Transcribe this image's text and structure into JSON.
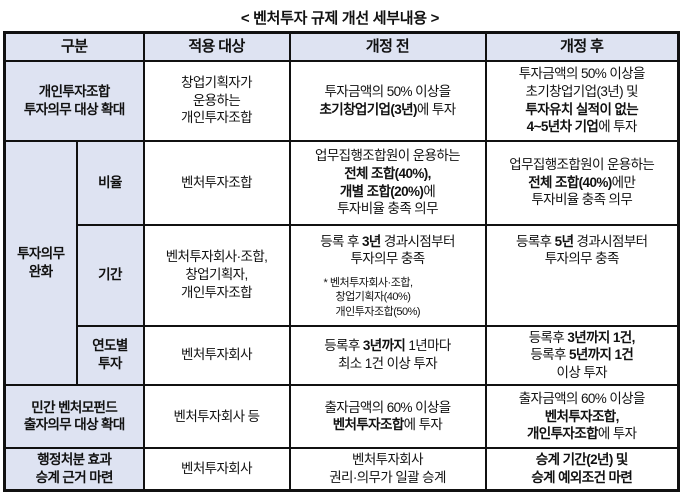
{
  "title": "< 벤처투자 규제 개선 세부내용 >",
  "colors": {
    "header_bg": "#dee3f2",
    "category_bg": "#dee3f2",
    "border": "#111111",
    "text": "#111111"
  },
  "header": {
    "category": "구분",
    "target": "적용 대상",
    "before": "개정 전",
    "after": "개정 후"
  },
  "rows": {
    "personal": {
      "category": [
        [
          {
            "t": "개인투자조합",
            "b": true
          }
        ],
        [
          {
            "t": "투자의무 대상 확대",
            "b": true
          }
        ]
      ],
      "target": [
        [
          {
            "t": "창업기획자가"
          }
        ],
        [
          {
            "t": "운용하는"
          }
        ],
        [
          {
            "t": "개인투자조합"
          }
        ]
      ],
      "before": [
        [
          {
            "t": "투자금액의 50% 이상을"
          }
        ],
        [
          {
            "t": "초기창업기업(3년)",
            "b": true
          },
          {
            "t": "에 투자"
          }
        ]
      ],
      "after": [
        [
          {
            "t": "투자금액의 50% 이상을"
          }
        ],
        [
          {
            "t": "초기창업기업(3년) 및"
          }
        ],
        [
          {
            "t": "투자유치 실적이 없는",
            "b": true
          }
        ],
        [
          {
            "t": "4~5년차 기업",
            "b": true
          },
          {
            "t": "에 투자"
          }
        ]
      ]
    },
    "ease": {
      "category": [
        [
          {
            "t": "투자의무",
            "b": true
          }
        ],
        [
          {
            "t": "완화",
            "b": true
          }
        ]
      ],
      "ratio": {
        "label": [
          [
            {
              "t": "비율",
              "b": true
            }
          ]
        ],
        "target": [
          [
            {
              "t": "벤처투자조합"
            }
          ]
        ],
        "before": [
          [
            {
              "t": "업무집행조합원이 운용하는"
            }
          ],
          [
            {
              "t": "전체 조합(40%),",
              "b": true
            }
          ],
          [
            {
              "t": "개별 조합(20%)",
              "b": true
            },
            {
              "t": "에"
            }
          ],
          [
            {
              "t": "투자비율 충족 의무"
            }
          ]
        ],
        "after": [
          [
            {
              "t": "업무집행조합원이 운용하는"
            }
          ],
          [
            {
              "t": "전체 조합(40%)",
              "b": true
            },
            {
              "t": "에만"
            }
          ],
          [
            {
              "t": "투자비율 충족 의무"
            }
          ]
        ]
      },
      "period": {
        "label": [
          [
            {
              "t": "기간",
              "b": true
            }
          ]
        ],
        "target": [
          [
            {
              "t": "벤처투자회사·조합,"
            }
          ],
          [
            {
              "t": "창업기획자,"
            }
          ],
          [
            {
              "t": "개인투자조합"
            }
          ]
        ],
        "before": [
          [
            {
              "t": "등록 후 "
            },
            {
              "t": "3년",
              "b": true
            },
            {
              "t": " 경과시점부터"
            }
          ],
          [
            {
              "t": "투자의무 충족"
            }
          ]
        ],
        "before_note": [
          [
            {
              "t": "* 벤처투자회사·조합,"
            }
          ],
          [
            {
              "t": "창업기획자(40%)"
            }
          ],
          [
            {
              "t": "개인투자조합(50%)"
            }
          ]
        ],
        "after": [
          [
            {
              "t": "등록후 "
            },
            {
              "t": "5년",
              "b": true
            },
            {
              "t": " 경과시점부터"
            }
          ],
          [
            {
              "t": "투자의무 충족"
            }
          ]
        ]
      },
      "yearly": {
        "label": [
          [
            {
              "t": "연도별",
              "b": true
            }
          ],
          [
            {
              "t": "투자",
              "b": true
            }
          ]
        ],
        "target": [
          [
            {
              "t": "벤처투자회사"
            }
          ]
        ],
        "before": [
          [
            {
              "t": "등록후 "
            },
            {
              "t": "3년까지",
              "b": true
            },
            {
              "t": " 1년마다"
            }
          ],
          [
            {
              "t": "최소 1건 이상 투자"
            }
          ]
        ],
        "after": [
          [
            {
              "t": "등록후 "
            },
            {
              "t": "3년까지 1건,",
              "b": true
            }
          ],
          [
            {
              "t": "등록후 "
            },
            {
              "t": "5년까지 1건",
              "b": true
            }
          ],
          [
            {
              "t": "이상 투자"
            }
          ]
        ]
      }
    },
    "fund": {
      "category": [
        [
          {
            "t": "민간 벤처모펀드",
            "b": true
          }
        ],
        [
          {
            "t": "출자의무 대상 확대",
            "b": true
          }
        ]
      ],
      "target": [
        [
          {
            "t": "벤처투자회사 등"
          }
        ]
      ],
      "before": [
        [
          {
            "t": "출자금액의 60% 이상을"
          }
        ],
        [
          {
            "t": "벤처투자조합",
            "b": true
          },
          {
            "t": "에 투자"
          }
        ]
      ],
      "after": [
        [
          {
            "t": "출자금액의 60% 이상을"
          }
        ],
        [
          {
            "t": "벤처투자조합,",
            "b": true
          }
        ],
        [
          {
            "t": "개인투자조합",
            "b": true
          },
          {
            "t": "에 투자"
          }
        ]
      ]
    },
    "admin": {
      "category": [
        [
          {
            "t": "행정처분 효과",
            "b": true
          }
        ],
        [
          {
            "t": "승계 근거 마련",
            "b": true
          }
        ]
      ],
      "target": [
        [
          {
            "t": "벤처투자회사"
          }
        ]
      ],
      "before": [
        [
          {
            "t": "벤처투자회사"
          }
        ],
        [
          {
            "t": "권리·의무가 일괄 승계"
          }
        ]
      ],
      "after": [
        [
          {
            "t": "승계 기간(2년) 및",
            "b": true
          }
        ],
        [
          {
            "t": "승계 예외조건 마련",
            "b": true
          }
        ]
      ]
    }
  }
}
